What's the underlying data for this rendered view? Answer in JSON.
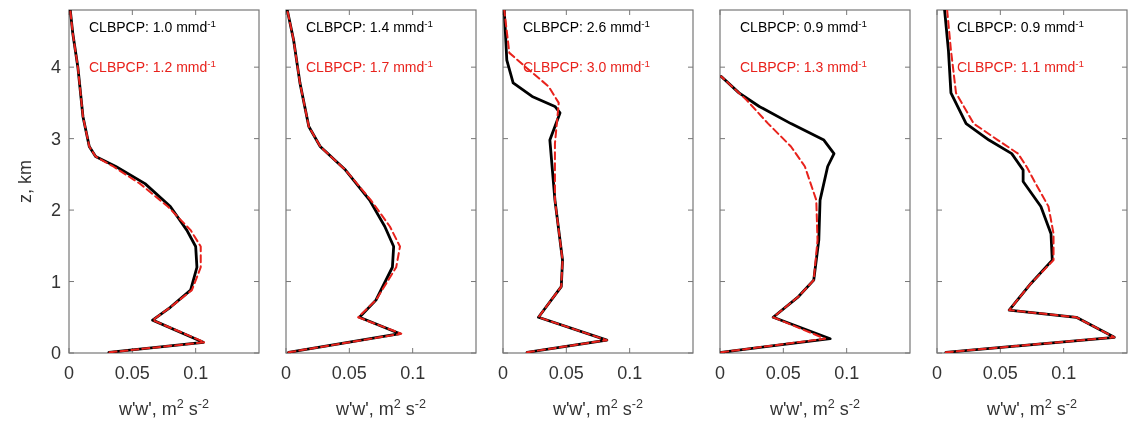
{
  "chart_data": [
    {
      "type": "line",
      "xlabel": "w'w', m$^{2}$ s$^{-2}$",
      "ylabel": "z, km",
      "xlim": [
        0,
        0.15
      ],
      "xticks": [
        0,
        0.05,
        0.1
      ],
      "ylim": [
        0,
        4.8
      ],
      "yticks": [
        0,
        1,
        2,
        3,
        4
      ],
      "legend": "top left",
      "series": [
        {
          "name": "CLBPCP: 1.0 mmd$^{-1}$",
          "color": "#000000",
          "line_style": "solid",
          "x": [
            0.0315,
            0.106,
            0.066,
            0.08,
            0.096,
            0.101,
            0.1,
            0.093,
            0.08,
            0.06,
            0.037,
            0.021,
            0.016,
            0.011,
            0.007,
            0.003,
            0.001
          ],
          "values": [
            0.01,
            0.15,
            0.46,
            0.64,
            0.88,
            1.2,
            1.49,
            1.72,
            2.05,
            2.37,
            2.61,
            2.75,
            2.89,
            3.31,
            4.0,
            4.47,
            4.8
          ]
        },
        {
          "name": "CLBPCP: 1.2 mmd$^{-1}$",
          "color": "#e8221c",
          "line_style": "dashed",
          "x": [
            0.032,
            0.107,
            0.066,
            0.08,
            0.097,
            0.104,
            0.104,
            0.096,
            0.078,
            0.056,
            0.035,
            0.021,
            0.016,
            0.011,
            0.007,
            0.003,
            0.001
          ],
          "values": [
            0.01,
            0.15,
            0.46,
            0.64,
            0.88,
            1.2,
            1.49,
            1.72,
            2.05,
            2.37,
            2.61,
            2.75,
            2.89,
            3.31,
            4.0,
            4.47,
            4.8
          ]
        }
      ]
    },
    {
      "type": "line",
      "xlabel": "w'w', m$^{2}$ s$^{-2}$",
      "xlim": [
        0,
        0.15
      ],
      "xticks": [
        0,
        0.05,
        0.1
      ],
      "ylim": [
        0,
        4.8
      ],
      "yticks": [
        0,
        1,
        2,
        3,
        4
      ],
      "tick_labels": "x",
      "legend": "top left",
      "series": [
        {
          "name": "CLBPCP: 1.4 mmd$^{-1}$",
          "color": "#000000",
          "line_style": "solid",
          "x": [
            0.002,
            0.09,
            0.058,
            0.071,
            0.084,
            0.085,
            0.078,
            0.066,
            0.047,
            0.027,
            0.018,
            0.011,
            0.006,
            0.001
          ],
          "values": [
            0.01,
            0.27,
            0.5,
            0.74,
            1.2,
            1.49,
            1.77,
            2.14,
            2.56,
            2.89,
            3.17,
            3.78,
            4.38,
            4.8
          ]
        },
        {
          "name": "CLBPCP: 1.7 mmd$^{-1}$",
          "color": "#e8221c",
          "line_style": "dashed",
          "x": [
            0.002,
            0.091,
            0.057,
            0.071,
            0.087,
            0.09,
            0.082,
            0.067,
            0.047,
            0.027,
            0.018,
            0.011,
            0.006,
            0.001
          ],
          "values": [
            0.01,
            0.27,
            0.5,
            0.74,
            1.2,
            1.49,
            1.77,
            2.14,
            2.56,
            2.89,
            3.17,
            3.78,
            4.38,
            4.8
          ]
        }
      ]
    },
    {
      "type": "line",
      "xlabel": "w'w', m$^{2}$ s$^{-2}$",
      "xlim": [
        0,
        0.15
      ],
      "xticks": [
        0,
        0.05,
        0.1
      ],
      "ylim": [
        0,
        4.8
      ],
      "yticks": [
        0,
        1,
        2,
        3,
        4
      ],
      "tick_labels": "x",
      "legend": "top left",
      "series": [
        {
          "name": "CLBPCP: 2.6 mmd$^{-1}$",
          "color": "#000000",
          "line_style": "solid",
          "x": [
            0.019,
            0.082,
            0.028,
            0.046,
            0.047,
            0.041,
            0.037,
            0.045,
            0.041,
            0.023,
            0.008,
            0.003,
            0.001
          ],
          "values": [
            0.01,
            0.18,
            0.5,
            0.93,
            1.3,
            2.14,
            2.98,
            3.36,
            3.45,
            3.59,
            3.78,
            4.1,
            4.8
          ]
        },
        {
          "name": "CLBPCP: 3.0 mmd$^{-1}$",
          "color": "#e8221c",
          "line_style": "dashed",
          "x": [
            0.019,
            0.082,
            0.028,
            0.046,
            0.047,
            0.041,
            0.041,
            0.044,
            0.036,
            0.018,
            0.005,
            0.001
          ],
          "values": [
            0.01,
            0.18,
            0.5,
            0.93,
            1.3,
            2.14,
            2.93,
            3.5,
            3.73,
            4.0,
            4.2,
            4.8
          ]
        }
      ]
    },
    {
      "type": "line",
      "xlabel": "w'w', m$^{2}$ s$^{-2}$",
      "xlim": [
        0,
        0.15
      ],
      "xticks": [
        0,
        0.05,
        0.1
      ],
      "ylim": [
        0,
        4.8
      ],
      "yticks": [
        0,
        1,
        2,
        3,
        4
      ],
      "tick_labels": "x",
      "legend": "top left",
      "series": [
        {
          "name": "CLBPCP: 0.9 mmd$^{-1}$",
          "color": "#000000",
          "line_style": "solid",
          "x": [
            0.001,
            0.087,
            0.042,
            0.062,
            0.074,
            0.078,
            0.079,
            0.085,
            0.09,
            0.082,
            0.056,
            0.031,
            0.015,
            0.001
          ],
          "values": [
            0.01,
            0.2,
            0.5,
            0.79,
            1.02,
            1.58,
            2.14,
            2.61,
            2.79,
            2.98,
            3.21,
            3.45,
            3.64,
            3.87
          ]
        },
        {
          "name": "CLBPCP: 1.3 mmd$^{-1}$",
          "color": "#e8221c",
          "line_style": "dashed",
          "x": [
            0.001,
            0.083,
            0.042,
            0.062,
            0.074,
            0.077,
            0.076,
            0.067,
            0.056,
            0.038,
            0.021,
            0.001
          ],
          "values": [
            0.01,
            0.2,
            0.5,
            0.79,
            1.02,
            1.58,
            2.14,
            2.61,
            2.89,
            3.21,
            3.54,
            3.87
          ]
        }
      ]
    },
    {
      "type": "line",
      "xlabel": "w'w', m$^{2}$ s$^{-2}$",
      "xlim": [
        0,
        0.15
      ],
      "xticks": [
        0,
        0.05,
        0.1
      ],
      "ylim": [
        0,
        4.8
      ],
      "yticks": [
        0,
        1,
        2,
        3,
        4
      ],
      "tick_labels": "x",
      "legend": "top left",
      "series": [
        {
          "name": "CLBPCP: 0.9 mmd$^{-1}$",
          "color": "#000000",
          "line_style": "solid",
          "x": [
            0.007,
            0.14,
            0.11,
            0.057,
            0.074,
            0.091,
            0.09,
            0.082,
            0.068,
            0.068,
            0.059,
            0.041,
            0.023,
            0.011,
            0.009,
            0.006
          ],
          "values": [
            0.01,
            0.22,
            0.5,
            0.6,
            0.97,
            1.3,
            1.67,
            2.05,
            2.4,
            2.56,
            2.79,
            2.98,
            3.21,
            3.64,
            4.24,
            4.8
          ]
        },
        {
          "name": "CLBPCP: 1.1 mmd$^{-1}$",
          "color": "#e8221c",
          "line_style": "dashed",
          "x": [
            0.007,
            0.14,
            0.11,
            0.057,
            0.074,
            0.092,
            0.092,
            0.088,
            0.077,
            0.071,
            0.064,
            0.048,
            0.029,
            0.015,
            0.011,
            0.008
          ],
          "values": [
            0.01,
            0.22,
            0.5,
            0.6,
            0.97,
            1.3,
            1.67,
            2.05,
            2.4,
            2.6,
            2.79,
            2.98,
            3.21,
            3.64,
            4.24,
            4.8
          ]
        }
      ]
    }
  ]
}
